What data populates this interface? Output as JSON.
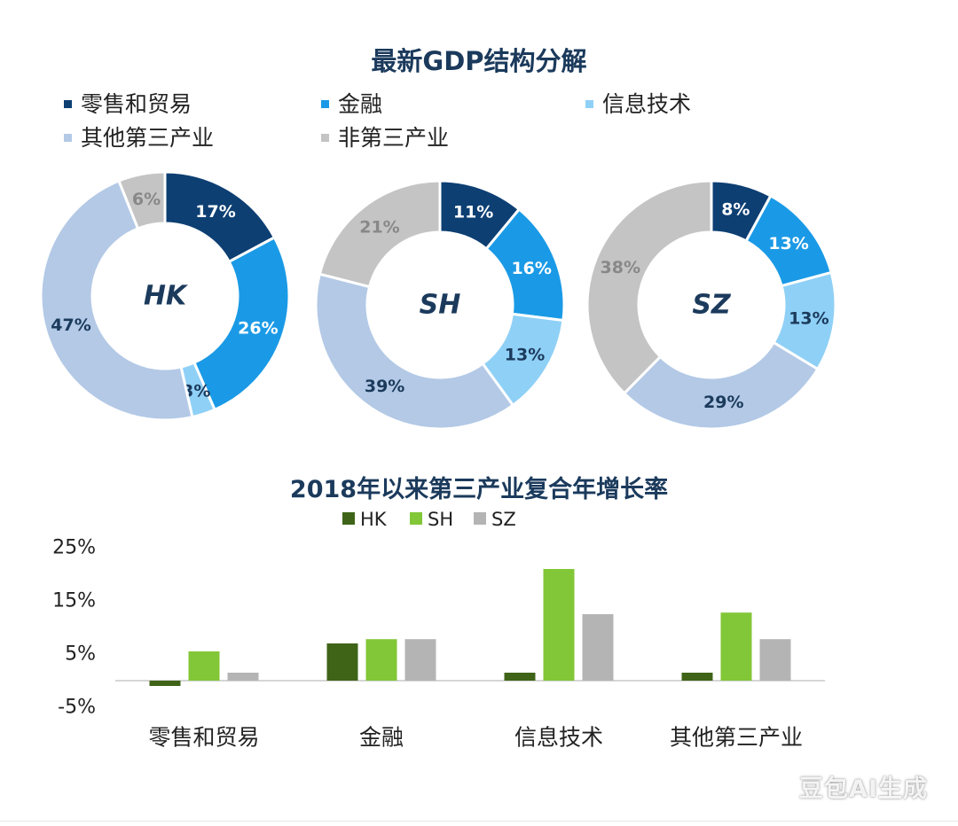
{
  "chart_data": [
    {
      "type": "pie",
      "subtype": "donut",
      "title": "最新GDP结构分解",
      "legend": [
        "零售和贸易",
        "金融",
        "信息技术",
        "其他第三产业",
        "非第三产业"
      ],
      "colors": [
        "#0d3f73",
        "#1a9ae6",
        "#8fd0f6",
        "#b3c9e6",
        "#c4c4c4"
      ],
      "charts": [
        {
          "name": "HK",
          "values": [
            17,
            26,
            3,
            47,
            6
          ],
          "labels": [
            "17%",
            "26%",
            "3%",
            "47%",
            "6%"
          ]
        },
        {
          "name": "SH",
          "values": [
            11,
            16,
            13,
            39,
            21
          ],
          "labels": [
            "11%",
            "16%",
            "13%",
            "39%",
            "21%"
          ]
        },
        {
          "name": "SZ",
          "values": [
            8,
            13,
            13,
            29,
            38
          ],
          "labels": [
            "8%",
            "13%",
            "13%",
            "29%",
            "38%"
          ]
        }
      ]
    },
    {
      "type": "bar",
      "title": "2018年以来第三产业复合年增长率",
      "categories": [
        "零售和贸易",
        "金融",
        "信息技术",
        "其他第三产业"
      ],
      "series": [
        {
          "name": "HK",
          "color": "#3f6418",
          "values": [
            -1,
            7,
            1.5,
            1.5
          ]
        },
        {
          "name": "SH",
          "color": "#82c737",
          "values": [
            5.5,
            7.8,
            21,
            12.8
          ]
        },
        {
          "name": "SZ",
          "color": "#b4b4b4",
          "values": [
            1.5,
            7.8,
            12.5,
            7.8
          ]
        }
      ],
      "yticks": [
        "25%",
        "15%",
        "5%",
        "-5%"
      ],
      "ytick_values": [
        25,
        15,
        5,
        -5
      ],
      "ylim": [
        -5,
        25
      ]
    }
  ],
  "watermark": "豆包AI生成"
}
